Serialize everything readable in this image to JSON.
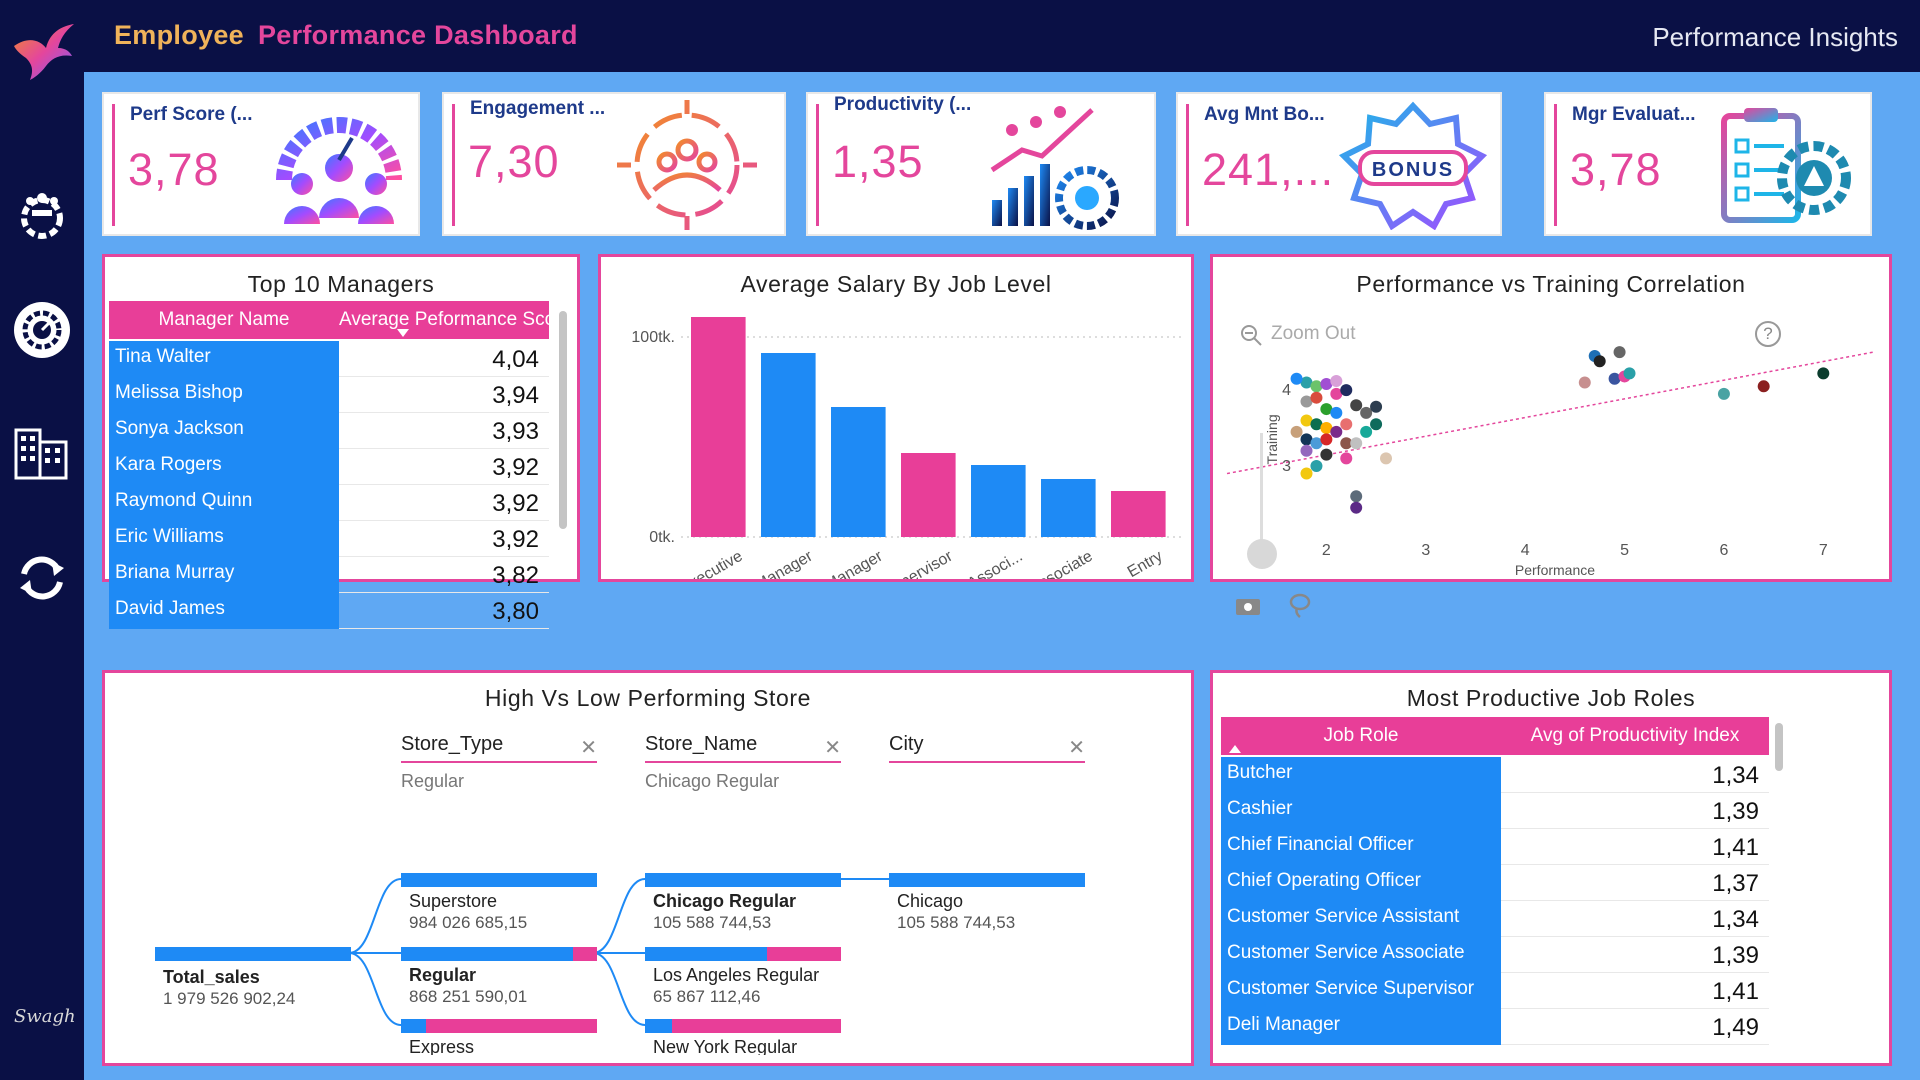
{
  "header": {
    "title_part1": "Employee",
    "title_part2": "Performance Dashboard",
    "subtitle": "Performance Insights"
  },
  "nav": {
    "items": [
      {
        "name": "team-gear-icon"
      },
      {
        "name": "performance-gauge-icon"
      },
      {
        "name": "buildings-icon"
      },
      {
        "name": "refresh-icon"
      }
    ],
    "signature": "Swagh"
  },
  "kpis": [
    {
      "label": "Perf Score (...",
      "value": "3,78",
      "icon": "team-gauge-icon"
    },
    {
      "label": "Engagement ...",
      "value": "7,30",
      "icon": "engagement-arrows-icon"
    },
    {
      "label": "Productivity (...",
      "value": "1,35",
      "icon": "productivity-growth-icon"
    },
    {
      "label": "Avg Mnt Bo...",
      "value": "241,...",
      "icon": "bonus-badge-icon",
      "badge_text": "BONUS"
    },
    {
      "label": "Mgr Evaluat...",
      "value": "3,78",
      "icon": "evaluation-clipboard-icon"
    }
  ],
  "managers": {
    "title": "Top 10 Managers",
    "col1": "Manager Name",
    "col2": "Average Peformance Score",
    "rows": [
      {
        "name": "Tina Walter",
        "score": "4,04"
      },
      {
        "name": "Melissa Bishop",
        "score": "3,94"
      },
      {
        "name": "Sonya Jackson",
        "score": "3,93"
      },
      {
        "name": "Kara Rogers",
        "score": "3,92"
      },
      {
        "name": "Raymond Quinn",
        "score": "3,92"
      },
      {
        "name": "Eric Williams",
        "score": "3,92"
      },
      {
        "name": "Briana Murray",
        "score": "3,82"
      },
      {
        "name": "David James",
        "score": "3,80"
      }
    ]
  },
  "chart_data": [
    {
      "type": "bar",
      "title": "Average Salary By Job Level",
      "categories": [
        "Executive",
        "Senior_Manager",
        "Manager",
        "Supervisor",
        "Senior_Associ...",
        "Associate",
        "Entry"
      ],
      "values": [
        110000,
        92000,
        65000,
        42000,
        36000,
        29000,
        23000
      ],
      "colors": [
        "#e83e98",
        "#1e8af5",
        "#1e8af5",
        "#e83e98",
        "#1e8af5",
        "#1e8af5",
        "#e83e98"
      ],
      "yticks": [
        "0tk.",
        "100tk."
      ],
      "ylim": [
        0,
        110000
      ],
      "grid": true
    },
    {
      "type": "scatter",
      "title": "Performance vs Training Correlation",
      "xlabel": "Performance",
      "ylabel": "Training",
      "xticks": [
        "2",
        "3",
        "4",
        "5",
        "6",
        "7"
      ],
      "yticks": [
        "3",
        "4"
      ],
      "xlim": [
        1.0,
        7.5
      ],
      "ylim": [
        1.8,
        4.7
      ],
      "trend": {
        "from": [
          1.0,
          2.9
        ],
        "to": [
          7.5,
          4.5
        ]
      },
      "points": [
        {
          "x": 1.8,
          "y": 4.1,
          "c": "#2aa0a8"
        },
        {
          "x": 1.9,
          "y": 4.05,
          "c": "#6bc36b"
        },
        {
          "x": 2.0,
          "y": 4.08,
          "c": "#a14fd3"
        },
        {
          "x": 2.1,
          "y": 3.95,
          "c": "#e4469c"
        },
        {
          "x": 2.2,
          "y": 4.0,
          "c": "#1f2b5e"
        },
        {
          "x": 1.8,
          "y": 3.85,
          "c": "#999999"
        },
        {
          "x": 1.9,
          "y": 3.9,
          "c": "#d94c3c"
        },
        {
          "x": 2.0,
          "y": 3.75,
          "c": "#2ca02c"
        },
        {
          "x": 2.1,
          "y": 3.7,
          "c": "#1e8af5"
        },
        {
          "x": 2.3,
          "y": 3.8,
          "c": "#444444"
        },
        {
          "x": 1.8,
          "y": 3.6,
          "c": "#f2c80f"
        },
        {
          "x": 1.9,
          "y": 3.55,
          "c": "#0b6e4f"
        },
        {
          "x": 2.0,
          "y": 3.5,
          "c": "#ffb000"
        },
        {
          "x": 2.1,
          "y": 3.45,
          "c": "#7a2a8a"
        },
        {
          "x": 2.2,
          "y": 3.55,
          "c": "#e86f6f"
        },
        {
          "x": 1.7,
          "y": 3.45,
          "c": "#c7a07a"
        },
        {
          "x": 1.8,
          "y": 3.35,
          "c": "#123456"
        },
        {
          "x": 1.9,
          "y": 3.3,
          "c": "#4b9bd8"
        },
        {
          "x": 2.0,
          "y": 3.35,
          "c": "#d62728"
        },
        {
          "x": 2.2,
          "y": 3.3,
          "c": "#8c564b"
        },
        {
          "x": 1.8,
          "y": 3.2,
          "c": "#9467bd"
        },
        {
          "x": 2.0,
          "y": 3.15,
          "c": "#333333"
        },
        {
          "x": 1.9,
          "y": 3.0,
          "c": "#2aa0a8"
        },
        {
          "x": 2.2,
          "y": 3.1,
          "c": "#e4469c"
        },
        {
          "x": 1.8,
          "y": 2.9,
          "c": "#f2c80f"
        },
        {
          "x": 2.3,
          "y": 3.3,
          "c": "#c0c0c0"
        },
        {
          "x": 2.5,
          "y": 3.55,
          "c": "#0e6b5c"
        },
        {
          "x": 2.4,
          "y": 3.45,
          "c": "#18a999"
        },
        {
          "x": 2.6,
          "y": 3.1,
          "c": "#dcc6b0"
        },
        {
          "x": 2.3,
          "y": 2.6,
          "c": "#5c6b7a"
        },
        {
          "x": 2.3,
          "y": 2.45,
          "c": "#5b2a86"
        },
        {
          "x": 2.4,
          "y": 3.7,
          "c": "#666666"
        },
        {
          "x": 2.5,
          "y": 3.78,
          "c": "#2d3e50"
        },
        {
          "x": 1.7,
          "y": 4.15,
          "c": "#1e8af5"
        },
        {
          "x": 2.1,
          "y": 4.12,
          "c": "#d8a0d8"
        },
        {
          "x": 4.7,
          "y": 4.45,
          "c": "#1e6fb5"
        },
        {
          "x": 4.75,
          "y": 4.38,
          "c": "#222222"
        },
        {
          "x": 4.95,
          "y": 4.5,
          "c": "#666666"
        },
        {
          "x": 4.6,
          "y": 4.1,
          "c": "#c78f8f"
        },
        {
          "x": 4.9,
          "y": 4.15,
          "c": "#3a55a0"
        },
        {
          "x": 5.0,
          "y": 4.18,
          "c": "#e4469c"
        },
        {
          "x": 5.05,
          "y": 4.22,
          "c": "#2aa0a8"
        },
        {
          "x": 6.0,
          "y": 3.95,
          "c": "#4aa3a3"
        },
        {
          "x": 6.4,
          "y": 4.05,
          "c": "#8b2020"
        },
        {
          "x": 7.0,
          "y": 4.22,
          "c": "#0b3d2e"
        }
      ]
    }
  ],
  "scatter_ui": {
    "zoom_out": "Zoom Out",
    "help": "?"
  },
  "tree": {
    "title": "High Vs Low Performing Store",
    "fields": [
      {
        "label": "Store_Type",
        "sub": "Regular"
      },
      {
        "label": "Store_Name",
        "sub": "Chicago Regular"
      },
      {
        "label": "City",
        "sub": ""
      }
    ],
    "root": {
      "name": "Total_sales",
      "value": "1 979 526 902,24"
    },
    "level1": [
      {
        "name": "Superstore",
        "value": "984 026 685,15",
        "fill": 1.0
      },
      {
        "name": "Regular",
        "value": "868 251 590,01",
        "fill": 0.88
      },
      {
        "name": "Express",
        "value": "",
        "fill": 0.13
      }
    ],
    "level2": [
      {
        "name": "Chicago Regular",
        "value": "105 588 744,53",
        "fill": 1.0
      },
      {
        "name": "Los Angeles Regular",
        "value": "65 867 112,46",
        "fill": 0.62
      },
      {
        "name": "New York Regular",
        "value": "",
        "fill": 0.14
      }
    ],
    "level3": [
      {
        "name": "Chicago",
        "value": "105 588 744,53",
        "fill": 1.0
      }
    ]
  },
  "roles": {
    "title": "Most Productive Job Roles",
    "col1": "Job Role",
    "col2": "Avg of Productivity Index",
    "rows": [
      {
        "name": "Butcher",
        "value": "1,34"
      },
      {
        "name": "Cashier",
        "value": "1,39"
      },
      {
        "name": "Chief Financial Officer",
        "value": "1,41"
      },
      {
        "name": "Chief Operating Officer",
        "value": "1,37"
      },
      {
        "name": "Customer Service Assistant",
        "value": "1,34"
      },
      {
        "name": "Customer Service Associate",
        "value": "1,39"
      },
      {
        "name": "Customer Service Supervisor",
        "value": "1,41"
      },
      {
        "name": "Deli Manager",
        "value": "1,49"
      }
    ]
  },
  "colors": {
    "pink": "#e83e98",
    "blue": "#1e8af5",
    "navy": "#0a1045",
    "canvas": "#5fa8f3",
    "orange": "#f0b35a"
  }
}
